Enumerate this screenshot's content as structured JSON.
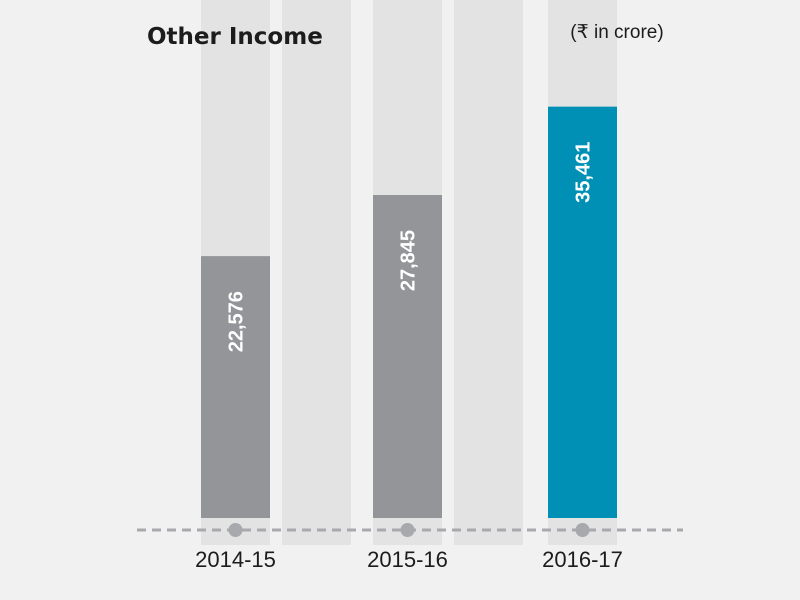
{
  "chart_data": {
    "type": "bar",
    "title": "Other Income",
    "unit": "(₹ in crore)",
    "categories": [
      "2014-15",
      "2015-16",
      "2016-17"
    ],
    "values": [
      22576,
      27845,
      35461
    ],
    "value_labels": [
      "22,576",
      "27,845",
      "35,461"
    ],
    "ylim": [
      0,
      50000
    ],
    "grid": false,
    "legend": "none",
    "colors": {
      "bar": "#939598",
      "highlight_bar": "#0090b5",
      "track": "#e3e3e4",
      "axis": "#a7a9ac",
      "background": "#f1f1f1"
    },
    "highlight_index": 2
  }
}
